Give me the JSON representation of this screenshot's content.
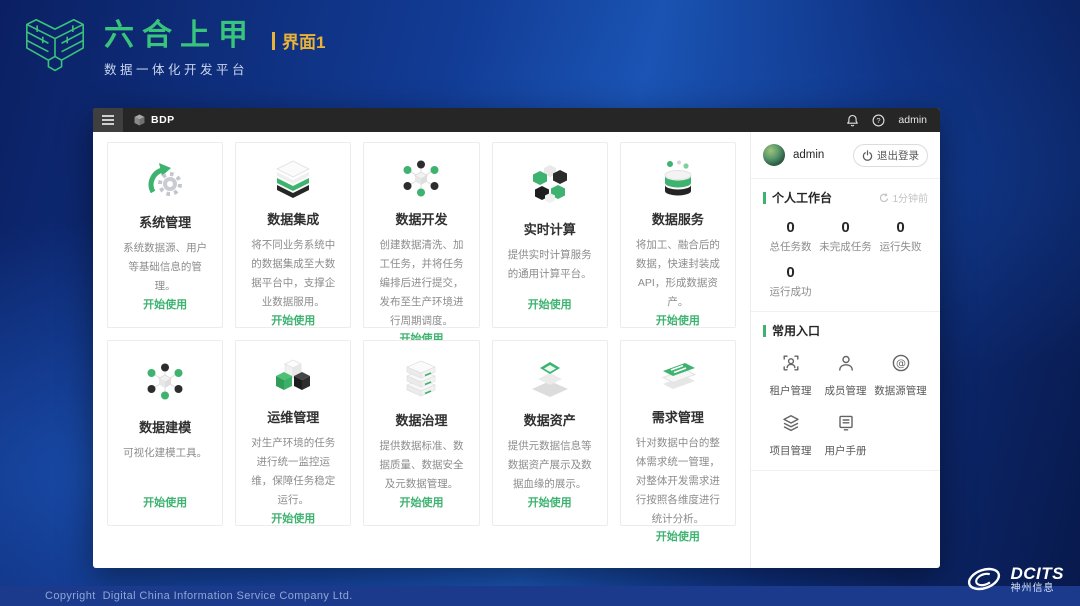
{
  "brand": {
    "title": "六合上甲",
    "subtitle": "数据一体化开发平台",
    "page_tag": "界面1"
  },
  "window": {
    "topbar": {
      "app_name": "BDP",
      "username": "admin"
    },
    "cards": [
      {
        "icon": "gear-sync",
        "title": "系统管理",
        "desc": "系统数据源、用户等基础信息的管理。",
        "cta": "开始使用"
      },
      {
        "icon": "layer-stack",
        "title": "数据集成",
        "desc": "将不同业务系统中的数据集成至大数据平台中，支撑企业数据服用。",
        "cta": "开始使用"
      },
      {
        "icon": "molecule",
        "title": "数据开发",
        "desc": "创建数据清洗、加工任务，并将任务编排后进行提交，发布至生产环境进行周期调度。",
        "cta": "开始使用"
      },
      {
        "icon": "hex-cluster",
        "title": "实时计算",
        "desc": "提供实时计算服务的通用计算平台。",
        "cta": "开始使用"
      },
      {
        "icon": "database",
        "title": "数据服务",
        "desc": "将加工、融合后的数据，快速封装成API，形成数据资产。",
        "cta": "开始使用"
      },
      {
        "icon": "molecule",
        "title": "数据建模",
        "desc": "可视化建模工具。",
        "cta": "开始使用"
      },
      {
        "icon": "cubes",
        "title": "运维管理",
        "desc": "对生产环境的任务进行统一监控运维，保障任务稳定运行。",
        "cta": "开始使用"
      },
      {
        "icon": "server-stack",
        "title": "数据治理",
        "desc": "提供数据标准、数据质量、数据安全及元数据管理。",
        "cta": "开始使用"
      },
      {
        "icon": "pyramid",
        "title": "数据资产",
        "desc": "提供元数据信息等数据资产展示及数据血缘的展示。",
        "cta": "开始使用"
      },
      {
        "icon": "docs-stack",
        "title": "需求管理",
        "desc": "针对数据中台的整体需求统一管理，对整体开发需求进行按照各维度进行统计分析。",
        "cta": "开始使用"
      }
    ],
    "sidebar": {
      "user": {
        "name": "admin",
        "logout_label": "退出登录"
      },
      "workspace": {
        "title": "个人工作台",
        "refresh_label": "1分钟前",
        "stats": [
          {
            "value": "0",
            "label": "总任务数"
          },
          {
            "value": "0",
            "label": "未完成任务"
          },
          {
            "value": "0",
            "label": "运行失败"
          },
          {
            "value": "0",
            "label": "运行成功"
          }
        ]
      },
      "quick_entry": {
        "title": "常用入口",
        "items": [
          {
            "icon": "tenant",
            "label": "租户管理"
          },
          {
            "icon": "member",
            "label": "成员管理"
          },
          {
            "icon": "datasource",
            "label": "数据源管理"
          },
          {
            "icon": "project",
            "label": "项目管理"
          },
          {
            "icon": "manual",
            "label": "用户手册"
          }
        ]
      }
    }
  },
  "footer": {
    "copyright": "Copyright  Digital China Information Service Company Ltd.",
    "logo_text": "DCITS",
    "logo_subtext": "神州信息"
  },
  "colors": {
    "accent_green": "#3eb370",
    "brand_green": "#38c47a",
    "tag_gold": "#e8b338",
    "topbar_bg": "#262626",
    "footer_bar_bg": "#1b3a8c",
    "footer_text_color": "#8fa6d6"
  }
}
